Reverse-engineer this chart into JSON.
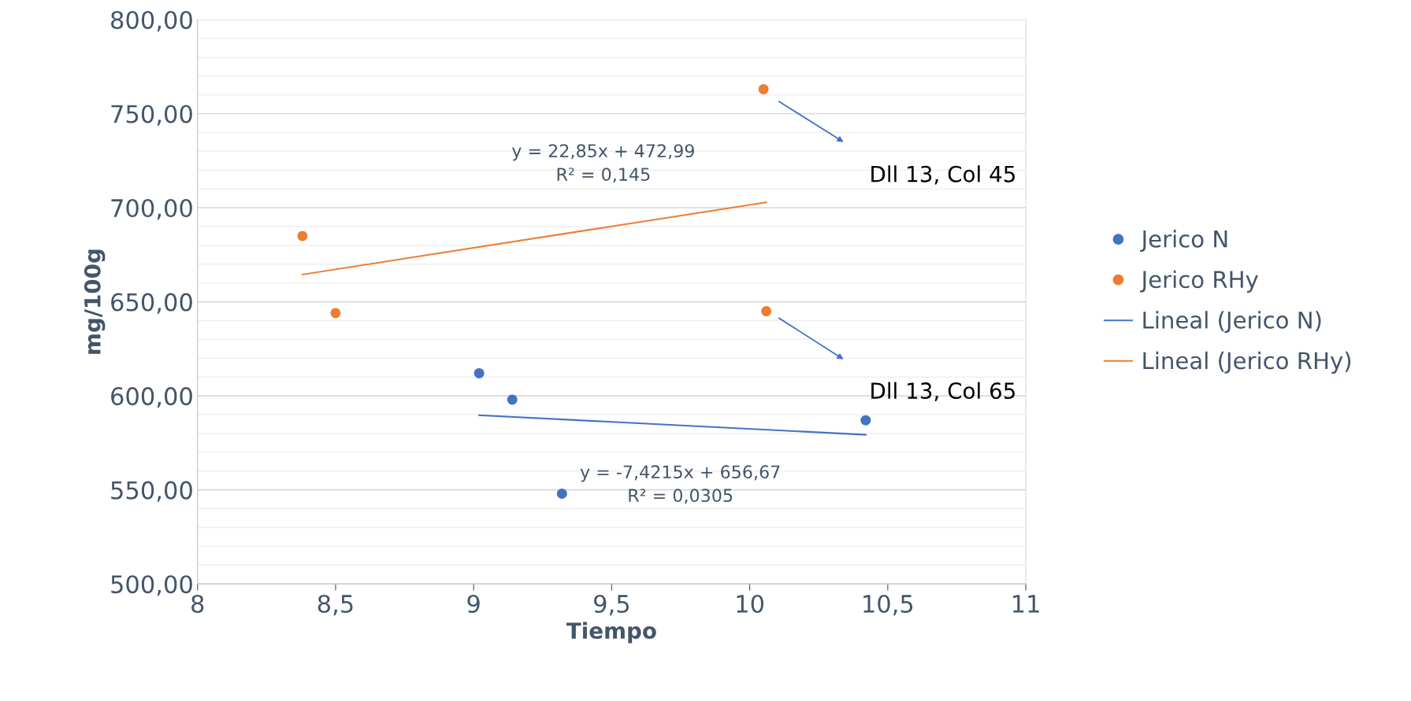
{
  "chart_data": {
    "type": "scatter",
    "xlabel": "Tiempo",
    "ylabel": "mg/100g",
    "series": [
      {
        "name": "Jerico N",
        "color": "#4472c4",
        "marker": "circle",
        "x": [
          9.02,
          9.14,
          9.32,
          10.42
        ],
        "values": [
          612,
          598,
          548,
          587
        ]
      },
      {
        "name": "Jerico RHy",
        "color": "#ed7d31",
        "marker": "circle",
        "x": [
          8.38,
          8.5,
          10.05,
          10.06
        ],
        "values": [
          685,
          644,
          763,
          645
        ]
      },
      {
        "name": "Lineal (Jerico N)",
        "type": "line",
        "marker": "none",
        "color": "#4472c4",
        "x": [
          9.02,
          10.42
        ],
        "values": [
          589.7,
          579.3
        ]
      },
      {
        "name": "Lineal (Jerico RHy)",
        "type": "line",
        "marker": "none",
        "color": "#ed7d31",
        "x": [
          8.38,
          10.06
        ],
        "values": [
          664.5,
          702.9
        ]
      }
    ],
    "xlim": [
      8,
      11
    ],
    "ylim": [
      500,
      800
    ],
    "xticks": [
      8,
      {
        "value": 8.5,
        "label": "8,5"
      },
      9,
      {
        "value": 9.5,
        "label": "9,5"
      },
      10,
      {
        "value": 10.5,
        "label": "10,5"
      },
      11
    ],
    "yticks": [
      {
        "value": 500,
        "label": "500,00"
      },
      {
        "value": 550,
        "label": "550,00"
      },
      {
        "value": 600,
        "label": "600,00"
      },
      {
        "value": 650,
        "label": "650,00"
      },
      {
        "value": 700,
        "label": "700,00"
      },
      {
        "value": 750,
        "label": "750,00"
      },
      {
        "value": 800,
        "label": "800,00"
      }
    ],
    "annotations": [
      "y = 22,85x + 472,99\nR² = 0,145",
      "y = -7,4215x + 656,67\nR² = 0,0305",
      "Dll 13, Col 45",
      "Dll 13, Col 65"
    ],
    "grid": "y",
    "legend": "right",
    "line_style": "solid"
  }
}
